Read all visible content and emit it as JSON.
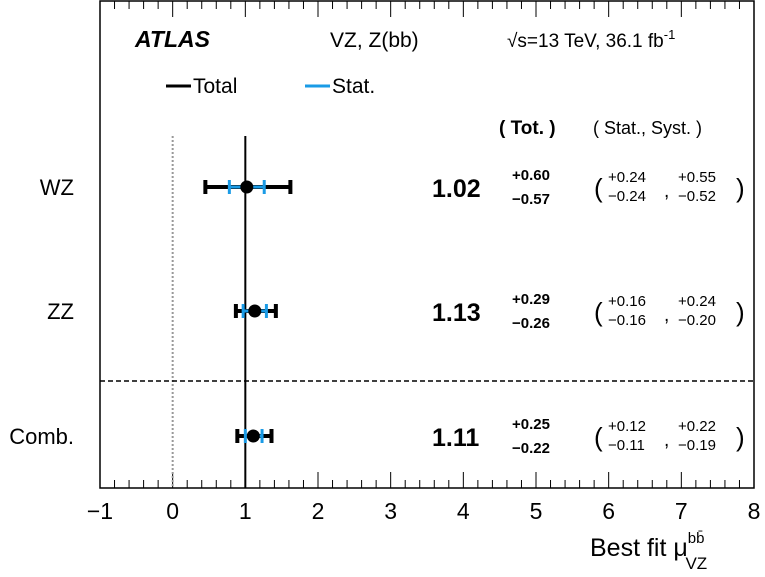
{
  "colors": {
    "total": "#000000",
    "stat": "#1a9be6",
    "axis": "#000000",
    "sm_line": "#000000",
    "zero_line": "#999999"
  },
  "chart_data": {
    "type": "forest",
    "experiment": "ATLAS",
    "channel": "VZ, Z(bb)",
    "energy_label": "√s=13 TeV, 36.1 fb",
    "energy_sup": "-1",
    "legend": [
      {
        "name": "Total",
        "color": "#000000"
      },
      {
        "name": "Stat.",
        "color": "#1a9be6"
      }
    ],
    "column_headers": {
      "tot": "( Tot. )",
      "stat_syst": "( Stat., Syst. )"
    },
    "xlabel": "Best fit μ",
    "xlabel_sup": "bb̄",
    "xlabel_sub": "VZ",
    "xlim": [
      -1,
      8
    ],
    "xticks": [
      "−1",
      "0",
      "1",
      "2",
      "3",
      "4",
      "5",
      "6",
      "7",
      "8"
    ],
    "entries": [
      {
        "label": "WZ",
        "value": 1.02,
        "value_text": "1.02",
        "tot_up": "+0.60",
        "tot_down": "−0.57",
        "stat_up": "+0.24",
        "stat_down": "−0.24",
        "syst_up": "+0.55",
        "syst_down": "−0.52",
        "tot_up_num": 0.6,
        "tot_down_num": 0.57,
        "stat_up_num": 0.24,
        "stat_down_num": 0.24
      },
      {
        "label": "ZZ",
        "value": 1.13,
        "value_text": "1.13",
        "tot_up": "+0.29",
        "tot_down": "−0.26",
        "stat_up": "+0.16",
        "stat_down": "−0.16",
        "syst_up": "+0.24",
        "syst_down": "−0.20",
        "tot_up_num": 0.29,
        "tot_down_num": 0.26,
        "stat_up_num": 0.16,
        "stat_down_num": 0.16
      },
      {
        "label": "Comb.",
        "value": 1.11,
        "value_text": "1.11",
        "tot_up": "+0.25",
        "tot_down": "−0.22",
        "stat_up": "+0.12",
        "stat_down": "−0.11",
        "syst_up": "+0.22",
        "syst_down": "−0.19",
        "tot_up_num": 0.25,
        "tot_down_num": 0.22,
        "stat_up_num": 0.12,
        "stat_down_num": 0.11
      }
    ],
    "reference_line": 1,
    "zero_line": 0
  }
}
